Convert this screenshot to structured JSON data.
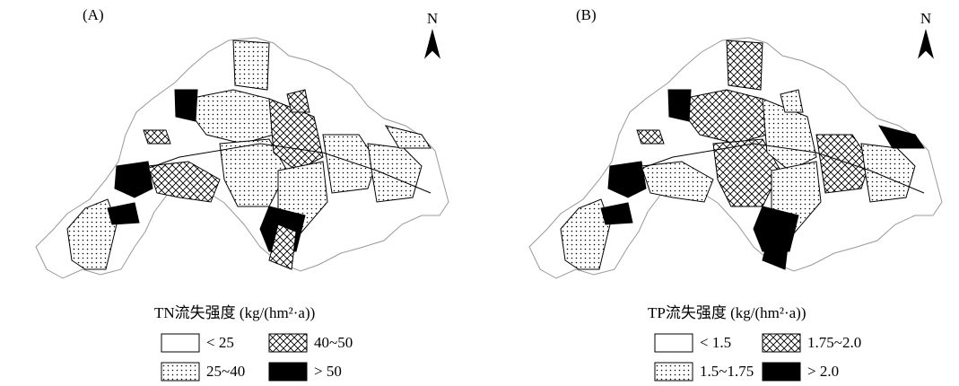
{
  "panels": [
    {
      "label": "(A)",
      "north": "N",
      "legend": {
        "title": "TN流失强度 (kg/(hm²·a))",
        "items": [
          "< 25",
          "25~40",
          "40~50",
          "> 50"
        ]
      }
    },
    {
      "label": "(B)",
      "north": "N",
      "legend": {
        "title": "TP流失强度 (kg/(hm²·a))",
        "items": [
          "< 1.5",
          "1.5~1.75",
          "1.75~2.0",
          "> 2.0"
        ]
      }
    }
  ]
}
